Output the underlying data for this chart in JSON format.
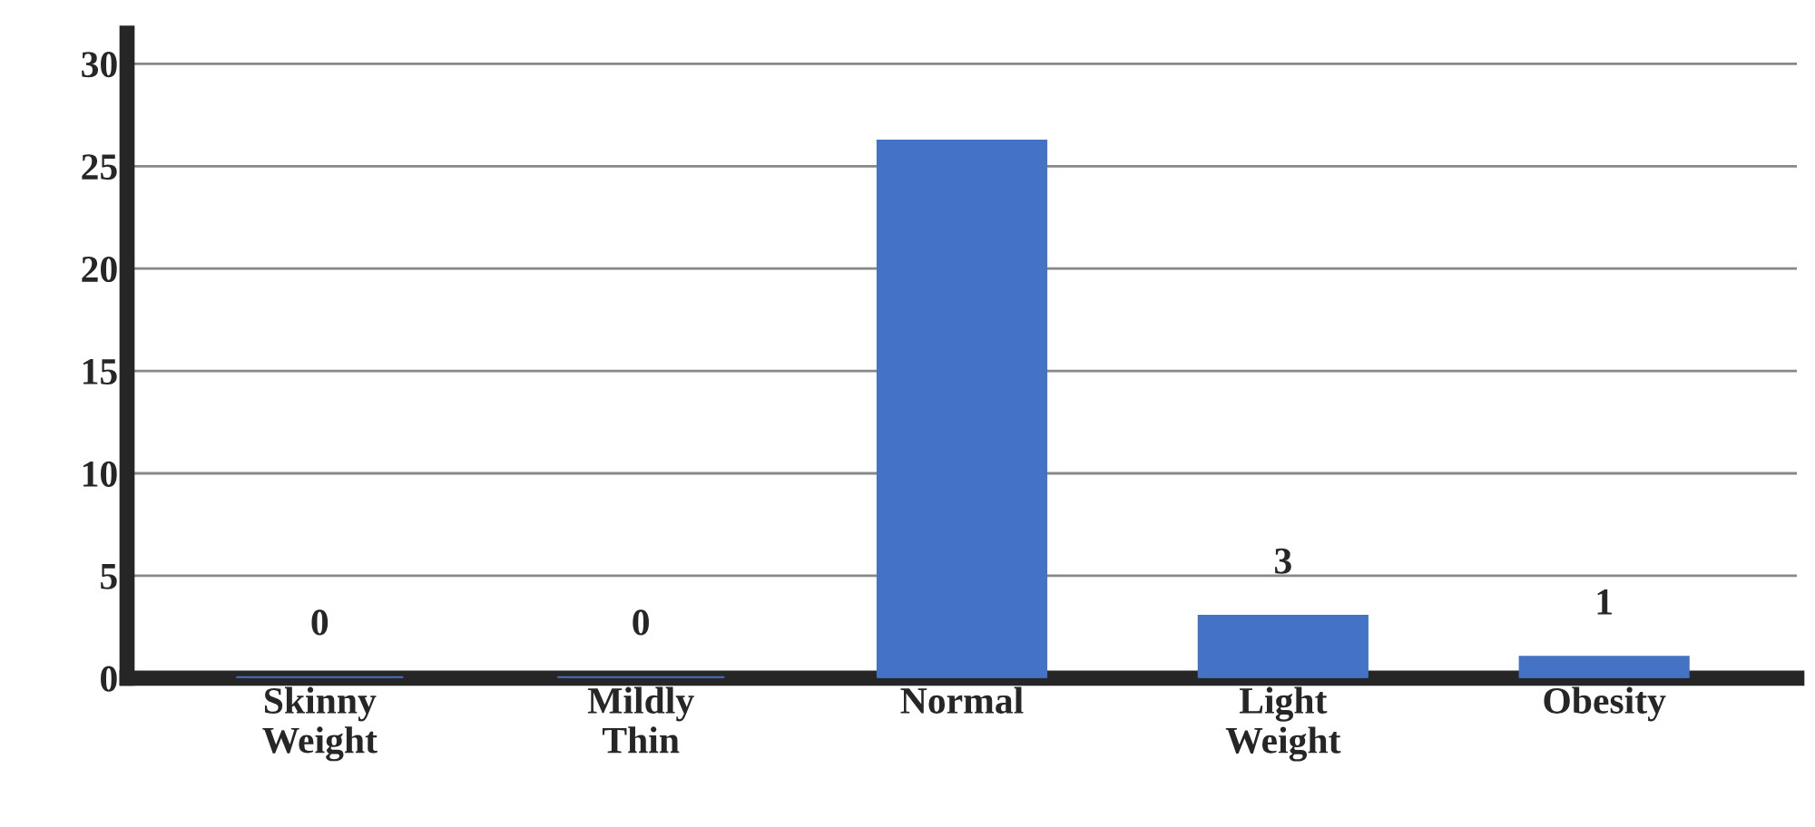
{
  "chart_data": {
    "type": "bar",
    "categories": [
      "Skinny\nWeight",
      "Mildly\nThin",
      "Normal",
      "Light\nWeight",
      "Obesity"
    ],
    "values": [
      0,
      0,
      26.2,
      3,
      1
    ],
    "value_labels": [
      "0",
      "0",
      null,
      "3",
      "1"
    ],
    "color": "#4472c4",
    "ylim": [
      0,
      31.5
    ],
    "yticks": [
      0,
      5,
      10,
      15,
      20,
      25,
      30
    ],
    "grid": "y"
  }
}
